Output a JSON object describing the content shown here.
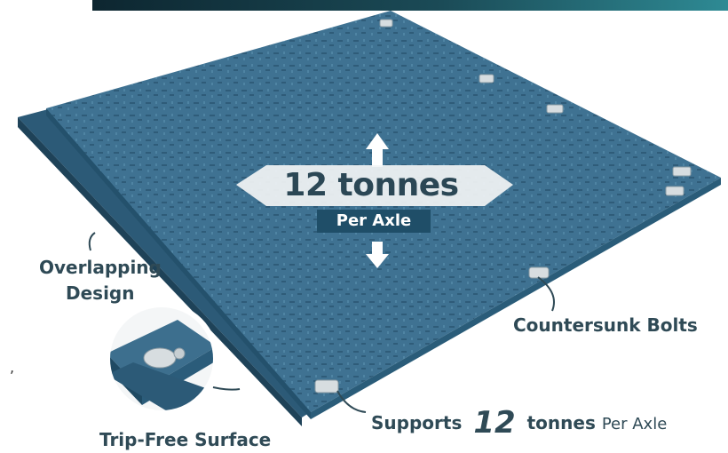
{
  "headline": {
    "value": "12 tonnes",
    "sub": "Per Axle"
  },
  "callouts": {
    "overlapping_line1": "Overlapping",
    "overlapping_line2": "Design",
    "countersunk": "Countersunk Bolts",
    "trip_free": "Trip-Free Surface",
    "supports_prefix": "Supports",
    "supports_value": "12",
    "supports_unit": "tonnes",
    "supports_suffix": "Per Axle"
  },
  "colors": {
    "mat": "#3d6f8e",
    "mat_edge": "#27506a",
    "banner_start": "#0d2630",
    "banner_end": "#2e8a94",
    "text": "#2f4a56",
    "tag": "#1f4e68"
  }
}
